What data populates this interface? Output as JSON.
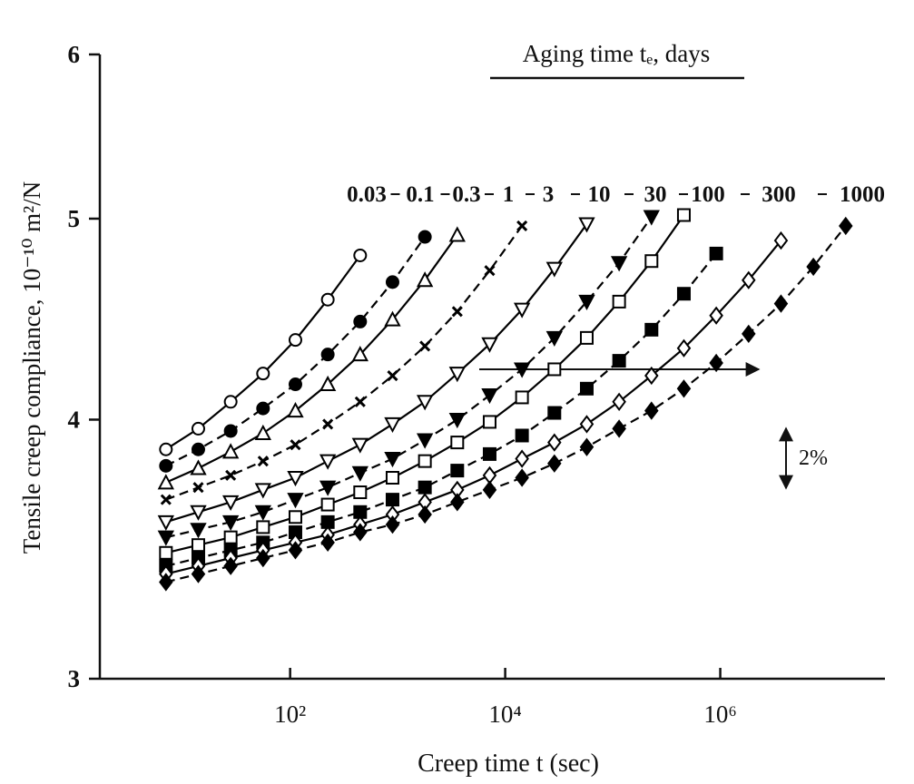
{
  "chart_data": {
    "type": "line",
    "legend_title": "Aging time tₑ, days",
    "xlabel": "Creep time t (sec)",
    "ylabel": "Tensile creep compliance, 10⁻¹⁰ m²/N",
    "annotation": "2%",
    "xscale": "log",
    "yscale": "log",
    "color": "#000000",
    "xlim": [
      1.7,
      34000000
    ],
    "ylim": [
      3,
      6
    ],
    "xticks": [
      {
        "value": 100,
        "label": "10²"
      },
      {
        "value": 10000,
        "label": "10⁴"
      },
      {
        "value": 1000000,
        "label": "10⁶"
      }
    ],
    "yticks": [
      3,
      4,
      5,
      6
    ],
    "x": [
      7,
      14,
      28,
      56,
      112,
      224,
      448,
      896,
      1792,
      3584,
      7168,
      14336,
      28672,
      57344,
      114688,
      229376,
      458752,
      917504,
      1835008,
      3670016,
      7340032,
      14680064
    ],
    "series": [
      {
        "name": "0.03",
        "marker": "circle",
        "filled": false,
        "dashed": false,
        "values": [
          3.87,
          3.96,
          4.08,
          4.21,
          4.37,
          4.57,
          4.8,
          null,
          null,
          null,
          null,
          null,
          null,
          null,
          null,
          null,
          null,
          null,
          null,
          null,
          null,
          null
        ]
      },
      {
        "name": "0.1",
        "marker": "circle",
        "filled": true,
        "dashed": true,
        "values": [
          3.8,
          3.87,
          3.95,
          4.05,
          4.16,
          4.3,
          4.46,
          4.66,
          4.9,
          null,
          null,
          null,
          null,
          null,
          null,
          null,
          null,
          null,
          null,
          null,
          null,
          null
        ]
      },
      {
        "name": "0.3",
        "marker": "triangle",
        "filled": false,
        "dashed": false,
        "values": [
          3.73,
          3.79,
          3.86,
          3.94,
          4.04,
          4.16,
          4.3,
          4.47,
          4.67,
          4.91,
          null,
          null,
          null,
          null,
          null,
          null,
          null,
          null,
          null,
          null,
          null,
          null
        ]
      },
      {
        "name": "1",
        "marker": "cross",
        "filled": true,
        "dashed": true,
        "values": [
          3.66,
          3.71,
          3.76,
          3.82,
          3.89,
          3.98,
          4.08,
          4.2,
          4.34,
          4.51,
          4.72,
          4.96,
          null,
          null,
          null,
          null,
          null,
          null,
          null,
          null,
          null,
          null
        ]
      },
      {
        "name": "3",
        "marker": "triangle-down",
        "filled": false,
        "dashed": false,
        "values": [
          3.57,
          3.61,
          3.65,
          3.7,
          3.75,
          3.82,
          3.89,
          3.98,
          4.08,
          4.21,
          4.35,
          4.52,
          4.73,
          4.97,
          null,
          null,
          null,
          null,
          null,
          null,
          null,
          null
        ]
      },
      {
        "name": "10",
        "marker": "triangle-down",
        "filled": true,
        "dashed": true,
        "values": [
          3.51,
          3.54,
          3.57,
          3.61,
          3.66,
          3.71,
          3.77,
          3.83,
          3.91,
          4.0,
          4.11,
          4.23,
          4.38,
          4.56,
          4.76,
          5.01,
          null,
          null,
          null,
          null,
          null,
          null
        ]
      },
      {
        "name": "30",
        "marker": "square",
        "filled": false,
        "dashed": false,
        "values": [
          3.45,
          3.48,
          3.51,
          3.55,
          3.59,
          3.64,
          3.69,
          3.75,
          3.82,
          3.9,
          3.99,
          4.1,
          4.23,
          4.38,
          4.56,
          4.77,
          5.02,
          null,
          null,
          null,
          null,
          null
        ]
      },
      {
        "name": "100",
        "marker": "square",
        "filled": true,
        "dashed": true,
        "values": [
          3.4,
          3.43,
          3.46,
          3.49,
          3.53,
          3.57,
          3.61,
          3.66,
          3.71,
          3.78,
          3.85,
          3.93,
          4.03,
          4.14,
          4.27,
          4.42,
          4.6,
          4.81,
          null,
          null,
          null,
          null
        ]
      },
      {
        "name": "300",
        "marker": "diamond",
        "filled": false,
        "dashed": false,
        "values": [
          3.37,
          3.4,
          3.43,
          3.46,
          3.49,
          3.52,
          3.56,
          3.6,
          3.65,
          3.7,
          3.76,
          3.83,
          3.9,
          3.98,
          4.08,
          4.2,
          4.33,
          4.49,
          4.67,
          4.88,
          null,
          null
        ]
      },
      {
        "name": "1000",
        "marker": "diamond",
        "filled": true,
        "dashed": true,
        "values": [
          3.34,
          3.37,
          3.4,
          3.43,
          3.46,
          3.49,
          3.53,
          3.56,
          3.6,
          3.65,
          3.7,
          3.75,
          3.81,
          3.88,
          3.96,
          4.04,
          4.14,
          4.26,
          4.4,
          4.55,
          4.74,
          4.96
        ]
      }
    ]
  }
}
